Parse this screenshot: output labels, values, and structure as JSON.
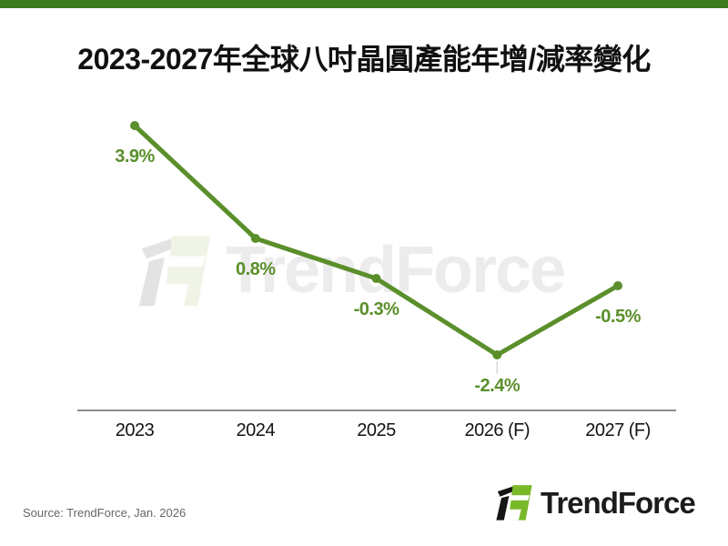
{
  "page": {
    "title": "2023-2027年全球八吋晶圓產能年增/減率變化",
    "source_note": "Source: TrendForce, Jan. 2026"
  },
  "watermark": {
    "text": "TrendForce"
  },
  "logo": {
    "text": "TrendForce"
  },
  "colors": {
    "top_bar": "#3d7a1e",
    "line": "#5a8f2b",
    "data_label": "#5a8f2b",
    "axis": "#8c8c8c",
    "logo_green": "#79b829",
    "title_text": "#111111",
    "source_text": "#666666",
    "watermark_gray": "#ececec"
  },
  "chart_data": {
    "type": "line",
    "title": "2023-2027年全球八吋晶圓產能年增/減率變化",
    "categories": [
      "2023",
      "2024",
      "2025",
      "2026 (F)",
      "2027 (F)"
    ],
    "values": [
      3.9,
      0.8,
      -0.3,
      -2.4,
      -0.5
    ],
    "data_labels": [
      "3.9%",
      "0.8%",
      "-0.3%",
      "-2.4%",
      "-0.5%"
    ],
    "unit": "%",
    "ylim": [
      -3.9,
      4.4
    ],
    "gridlines": false,
    "legend": "none",
    "x_axis_line": true,
    "data_label_position": "below",
    "leader_index": 3,
    "line_color": "#5a8f2b",
    "marker_color": "#5a8f2b"
  }
}
